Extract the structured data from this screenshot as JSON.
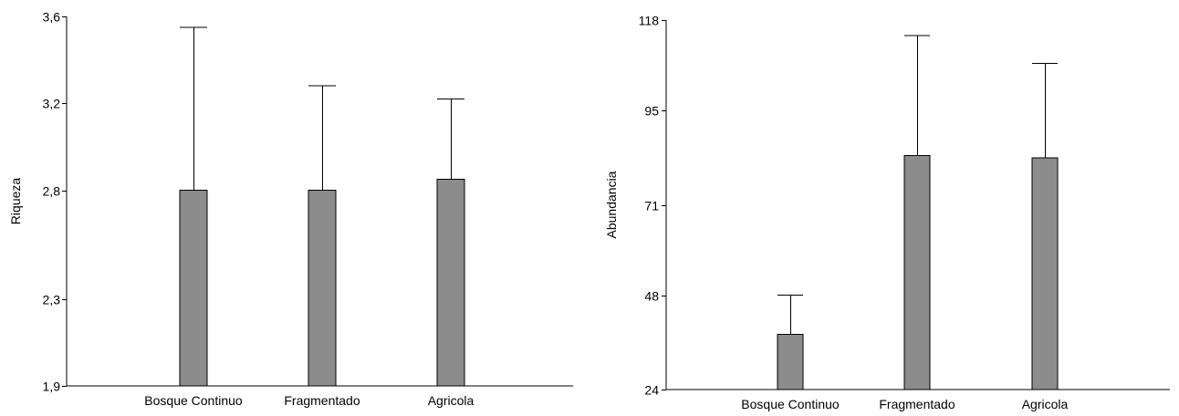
{
  "chart_data": [
    {
      "type": "bar",
      "categories": [
        "Bosque Continuo",
        "Fragmentado",
        "Agricola"
      ],
      "values": [
        2.8,
        2.8,
        2.85
      ],
      "error_upper": [
        3.55,
        3.28,
        3.22
      ],
      "xlabel": "",
      "ylabel": "Riqueza",
      "ylim": [
        1.9,
        3.6
      ],
      "yticks": [
        1.9,
        2.3,
        2.8,
        3.2,
        3.6
      ],
      "ytick_labels": [
        "1,9",
        "2,3",
        "2,8",
        "3,2",
        "3,6"
      ],
      "grid": false,
      "bar_color": "#8c8c8c"
    },
    {
      "type": "bar",
      "categories": [
        "Bosque Continuo",
        "Fragmentado",
        "Agricola"
      ],
      "values": [
        38,
        83.5,
        83
      ],
      "error_upper": [
        48,
        114,
        107
      ],
      "xlabel": "",
      "ylabel": "Abundancia",
      "ylim": [
        24,
        118
      ],
      "yticks": [
        24,
        48,
        71,
        95,
        118
      ],
      "ytick_labels": [
        "24",
        "48",
        "71",
        "95",
        "118"
      ],
      "grid": false,
      "bar_color": "#8c8c8c"
    }
  ]
}
